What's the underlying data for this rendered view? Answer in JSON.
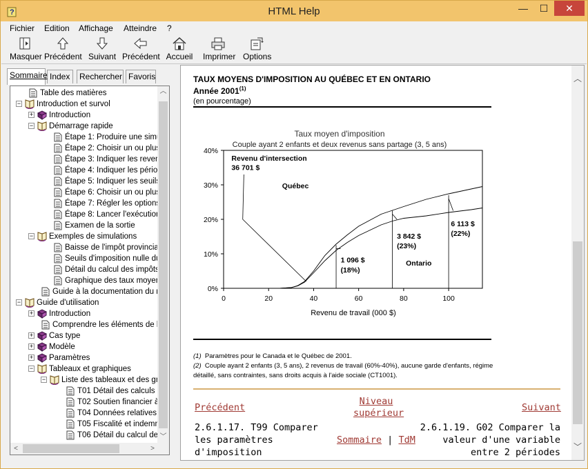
{
  "window": {
    "title": "HTML Help",
    "min_glyph": "—",
    "max_glyph": "☐",
    "close_glyph": "✕"
  },
  "menu": [
    "Fichier",
    "Edition",
    "Affichage",
    "Atteindre",
    "?"
  ],
  "toolbar": [
    {
      "label": "Masquer",
      "icon": "hide-pane-icon"
    },
    {
      "label": "Précédent",
      "icon": "up-arrow-icon"
    },
    {
      "label": "Suivant",
      "icon": "down-arrow-icon"
    },
    {
      "label": "Précédent",
      "icon": "back-arrow-icon"
    },
    {
      "label": "Accueil",
      "icon": "home-icon"
    },
    {
      "label": "Imprimer",
      "icon": "printer-icon"
    },
    {
      "label": "Options",
      "icon": "options-icon"
    }
  ],
  "tabs": [
    "Sommaire",
    "Index",
    "Rechercher",
    "Favoris"
  ],
  "tree": [
    {
      "text": "Table des matières",
      "level": 1,
      "kind": "page",
      "exp": ""
    },
    {
      "text": "Introduction et survol",
      "level": 0,
      "kind": "book-open",
      "exp": "−"
    },
    {
      "text": "Introduction",
      "level": 1,
      "kind": "book",
      "exp": "+"
    },
    {
      "text": "Démarrage rapide",
      "level": 1,
      "kind": "book-open",
      "exp": "−"
    },
    {
      "text": "Étape 1: Produire une simul",
      "level": 3,
      "kind": "page",
      "exp": ""
    },
    {
      "text": "Étape 2: Choisir un ou plusi",
      "level": 3,
      "kind": "page",
      "exp": ""
    },
    {
      "text": "Étape 3: Indiquer les revenu",
      "level": 3,
      "kind": "page",
      "exp": ""
    },
    {
      "text": "Étape 4: Indiquer les périod",
      "level": 3,
      "kind": "page",
      "exp": ""
    },
    {
      "text": "Étape 5: Indiquer les seuils",
      "level": 3,
      "kind": "page",
      "exp": ""
    },
    {
      "text": "Étape 6: Choisir un ou plusi",
      "level": 3,
      "kind": "page",
      "exp": ""
    },
    {
      "text": "Étape 7: Régler les options",
      "level": 3,
      "kind": "page",
      "exp": ""
    },
    {
      "text": "Étape 8: Lancer l'exécution",
      "level": 3,
      "kind": "page",
      "exp": ""
    },
    {
      "text": "Examen de la sortie",
      "level": 3,
      "kind": "page",
      "exp": ""
    },
    {
      "text": "Exemples de simulations",
      "level": 1,
      "kind": "book-open",
      "exp": "−"
    },
    {
      "text": "Baisse de l'impôt provincial",
      "level": 3,
      "kind": "page",
      "exp": ""
    },
    {
      "text": "Seuils d'imposition nulle du f",
      "level": 3,
      "kind": "page",
      "exp": ""
    },
    {
      "text": "Détail du calcul des impôts,",
      "level": 3,
      "kind": "page",
      "exp": ""
    },
    {
      "text": "Graphique des taux moyens",
      "level": 3,
      "kind": "page",
      "exp": ""
    },
    {
      "text": "Guide à la documentation du mo",
      "level": 2,
      "kind": "page",
      "exp": ""
    },
    {
      "text": "Guide d'utilisation",
      "level": 0,
      "kind": "book-open",
      "exp": "−"
    },
    {
      "text": "Introduction",
      "level": 1,
      "kind": "book",
      "exp": "+"
    },
    {
      "text": "Comprendre les éléments de ba",
      "level": 2,
      "kind": "page",
      "exp": ""
    },
    {
      "text": "Cas type",
      "level": 1,
      "kind": "book",
      "exp": "+"
    },
    {
      "text": "Modèle",
      "level": 1,
      "kind": "book",
      "exp": "+"
    },
    {
      "text": "Paramètres",
      "level": 1,
      "kind": "book",
      "exp": "+"
    },
    {
      "text": "Tableaux et graphiques",
      "level": 1,
      "kind": "book-open",
      "exp": "−"
    },
    {
      "text": "Liste des tableaux et des gr",
      "level": 2,
      "kind": "book-open",
      "exp": "−"
    },
    {
      "text": "T01 Détail des calculs d",
      "level": 4,
      "kind": "page",
      "exp": ""
    },
    {
      "text": "T02 Soutien financier à",
      "level": 4,
      "kind": "page",
      "exp": ""
    },
    {
      "text": "T04 Données relatives",
      "level": 4,
      "kind": "page",
      "exp": ""
    },
    {
      "text": "T05 Fiscalité et indemni",
      "level": 4,
      "kind": "page",
      "exp": ""
    },
    {
      "text": "T06 Détail du calcul de",
      "level": 4,
      "kind": "page",
      "exp": ""
    }
  ],
  "doc": {
    "title": "TAUX MOYENS D'IMPOSITION AU QUÉBEC ET EN ONTARIO",
    "year": "Année 2001",
    "year_note": "(1)",
    "unit": "(en pourcentage)",
    "notes": [
      {
        "num": "(1)",
        "text": "Paramètres pour le Canada et le Québec de 2001."
      },
      {
        "num": "(2)",
        "text": "Couple ayant 2 enfants (3, 5 ans), 2 revenus de travail (60%-40%), aucune garde d'enfants, régime détaillé, sans contraintes, sans droits acquis à l'aide sociale (CT1001)."
      }
    ]
  },
  "chart_data": {
    "type": "line",
    "title": "Taux moyen d'imposition",
    "subtitle": "Couple ayant 2 enfants et deux revenus sans partage (3, 5 ans)",
    "xlabel": "Revenu de travail (000 $)",
    "ylabel": "",
    "xlim": [
      0,
      115
    ],
    "ylim": [
      0,
      40
    ],
    "xticks": [
      "0",
      "20",
      "40",
      "60",
      "80",
      "100"
    ],
    "yticks": [
      "0%",
      "10%",
      "20%",
      "30%",
      "40%"
    ],
    "grid": false,
    "series": [
      {
        "name": "Québec",
        "x": [
          0,
          25,
          30,
          33,
          36,
          40,
          45,
          50,
          55,
          60,
          70,
          75,
          80,
          90,
          100,
          110,
          115
        ],
        "values": [
          0,
          0,
          0.2,
          0.8,
          2,
          5,
          9.5,
          12.8,
          15.5,
          18,
          21.5,
          22.6,
          23.7,
          25.8,
          27.4,
          28.8,
          29.5
        ]
      },
      {
        "name": "Ontario",
        "x": [
          0,
          25,
          30,
          33,
          36,
          40,
          45,
          50,
          55,
          60,
          70,
          75,
          80,
          90,
          100,
          110,
          115
        ],
        "values": [
          0,
          0,
          0.2,
          0.7,
          1.8,
          4.5,
          8,
          11,
          13.3,
          15.3,
          18.4,
          19.5,
          20.3,
          21,
          22,
          22.8,
          23.3
        ]
      }
    ],
    "annotations": [
      {
        "label": "Revenu d'intersection",
        "value": "36 701 $",
        "x": 36.7,
        "y": 2
      },
      {
        "label": "1 096 $",
        "pct": "(18%)",
        "x": 50,
        "y": 11
      },
      {
        "label": "3 842 $",
        "pct": "(23%)",
        "x": 75,
        "y": 19.5
      },
      {
        "label": "6 113 $",
        "pct": "(22%)",
        "x": 100,
        "y": 22
      }
    ]
  },
  "nav": {
    "prev": "Précédent",
    "up": "Niveau supérieur",
    "next": "Suivant",
    "prev_topic": "2.6.1.17. T99 Comparer les paramètres d'imposition",
    "next_topic": "2.6.1.19. G02 Comparer la valeur d'une variable entre 2 périodes",
    "sommaire": "Sommaire",
    "sep": "|",
    "tdm": "TdM"
  },
  "colors": {
    "titlebar": "#f2c46c",
    "frame": "#f0c060",
    "link": "#a03a34",
    "close": "#c7453b"
  }
}
